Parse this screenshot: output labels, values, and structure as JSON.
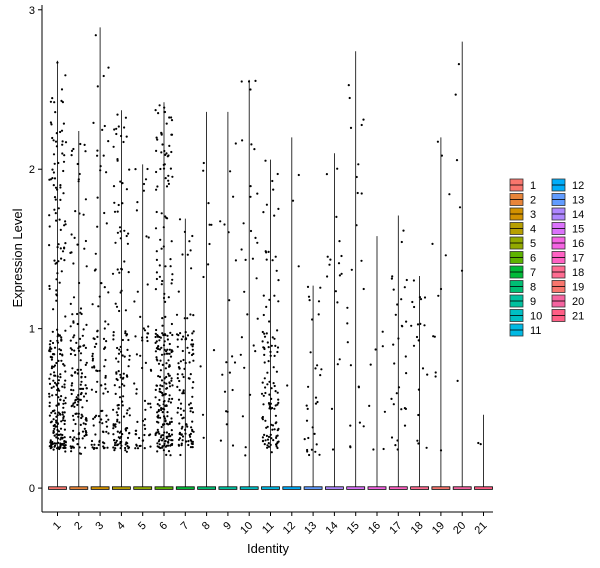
{
  "chart_data": {
    "type": "violin-scatter",
    "xlabel": "Identity",
    "ylabel": "Expression Level",
    "ylim": [
      -0.15,
      3.03
    ],
    "yticks": [
      0,
      1,
      2,
      3
    ],
    "categories": [
      "1",
      "2",
      "3",
      "4",
      "5",
      "6",
      "7",
      "8",
      "9",
      "10",
      "11",
      "12",
      "13",
      "14",
      "15",
      "16",
      "17",
      "18",
      "19",
      "20",
      "21"
    ],
    "max_values": [
      2.68,
      2.24,
      2.89,
      2.37,
      2.03,
      2.42,
      1.69,
      2.36,
      2.36,
      2.56,
      2.06,
      2.2,
      1.27,
      2.1,
      2.74,
      1.58,
      1.71,
      1.33,
      2.2,
      2.8,
      0.46
    ],
    "nonzero_counts": [
      260,
      150,
      100,
      150,
      60,
      260,
      120,
      12,
      20,
      30,
      120,
      4,
      30,
      18,
      24,
      8,
      30,
      20,
      12,
      6,
      2
    ],
    "cluster_colors": [
      "#F8766D",
      "#E8853A",
      "#D39200",
      "#B79F00",
      "#93AA00",
      "#5EB300",
      "#00BA38",
      "#00BF74",
      "#00C19F",
      "#00BFC4",
      "#00B9E3",
      "#00ADFA",
      "#619CFF",
      "#AE87FF",
      "#DB72FB",
      "#F564E3",
      "#FF61C3",
      "#FF6C91",
      "#F8766D",
      "#F564A0",
      "#FF5E85"
    ],
    "legend": {
      "placement": "right",
      "entries": [
        "1",
        "2",
        "3",
        "4",
        "5",
        "6",
        "7",
        "8",
        "9",
        "10",
        "11",
        "12",
        "13",
        "14",
        "15",
        "16",
        "17",
        "18",
        "19",
        "20",
        "21"
      ]
    },
    "grid": false
  }
}
